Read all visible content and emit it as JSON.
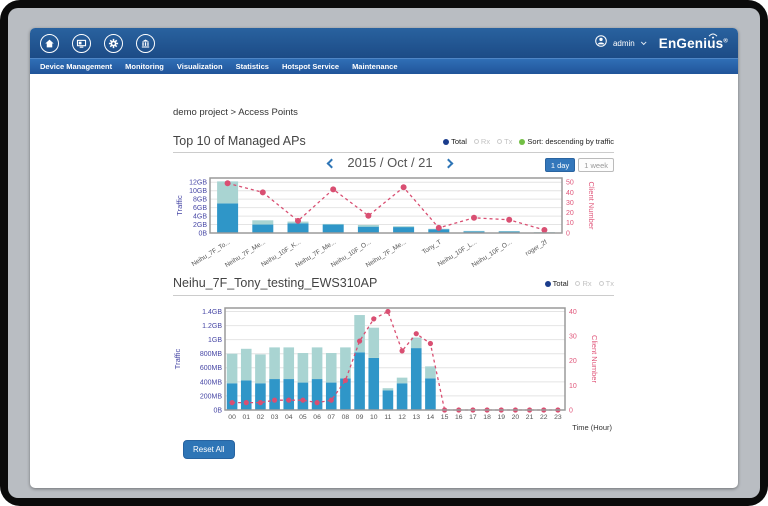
{
  "header": {
    "icons": [
      "home-icon",
      "screens-icon",
      "settings-icon",
      "organization-icon"
    ],
    "user": "admin",
    "brand": "EnGenius",
    "brand_reg": "®"
  },
  "nav": {
    "items": [
      "Device Management",
      "Monitoring",
      "Visualization",
      "Statistics",
      "Hotspot Service",
      "Maintenance"
    ]
  },
  "breadcrumb": "demo project > Access Points",
  "section1": {
    "title": "Top 10 of Managed APs",
    "legend": {
      "total": "Total",
      "rx": "Rx",
      "tx": "Tx",
      "sort": "Sort: descending by traffic"
    },
    "date": "2015 / Oct / 21",
    "range_buttons": [
      {
        "label": "1 day",
        "active": true
      },
      {
        "label": "1 week",
        "active": false
      }
    ]
  },
  "section2": {
    "title": "Neihu_7F_Tony_testing_EWS310AP",
    "legend": {
      "total": "Total",
      "rx": "Rx",
      "tx": "Tx"
    }
  },
  "reset_button": "Reset All",
  "colors": {
    "bar_dark": "#2f96c8",
    "bar_light": "#a9d4d2",
    "line": "#d94f72",
    "left_axis": "#4646a5",
    "right_axis": "#e0567a",
    "accent": "#2e75b6",
    "total_dot": "#1a3c8c",
    "sort_dot": "#72bf44"
  },
  "chart_data": [
    {
      "type": "bar",
      "title": "Top 10 of Managed APs",
      "categories": [
        "Neihu_7F_To...",
        "Neihu_7F_Me...",
        "Neihu_10F_K...",
        "Neihu_7F_Me...",
        "Neihu_10F_O...",
        "Neihu_7F_Me...",
        "Tony_T",
        "Neihu_10F_L...",
        "Neihu_10F_O...",
        "roger_2f"
      ],
      "series": [
        {
          "name": "traffic_lower_GB",
          "values": [
            7.0,
            2.0,
            2.3,
            2.0,
            1.5,
            1.4,
            0.9,
            0.4,
            0.35,
            0.15
          ]
        },
        {
          "name": "traffic_upper_GB",
          "values": [
            5.2,
            1.0,
            0.4,
            0.15,
            0.4,
            0.2,
            0.1,
            0.1,
            0.1,
            0.05
          ]
        },
        {
          "name": "client_number",
          "values": [
            49,
            40,
            12,
            43,
            17,
            45,
            5,
            15,
            13,
            3
          ]
        }
      ],
      "ylabel": "Traffic",
      "y2label": "Client Number",
      "yticks": [
        "0B",
        "2GB",
        "4GB",
        "6GB",
        "8GB",
        "10GB",
        "12GB"
      ],
      "ytick_vals": [
        0,
        2,
        4,
        6,
        8,
        10,
        12
      ],
      "ylim": [
        0,
        13
      ],
      "y2ticks": [
        0,
        10,
        20,
        30,
        40,
        50
      ],
      "y2lim": [
        0,
        50
      ],
      "y2_aligns_with_left": 12
    },
    {
      "type": "bar",
      "title": "Neihu_7F_Tony_testing_EWS310AP",
      "categories": [
        "00",
        "01",
        "02",
        "03",
        "04",
        "05",
        "06",
        "07",
        "08",
        "09",
        "10",
        "11",
        "12",
        "13",
        "14",
        "15",
        "16",
        "17",
        "18",
        "19",
        "20",
        "21",
        "22",
        "23"
      ],
      "series": [
        {
          "name": "traffic_lower_MB",
          "values": [
            380,
            420,
            380,
            440,
            440,
            390,
            440,
            390,
            450,
            820,
            740,
            280,
            380,
            880,
            450,
            0,
            0,
            0,
            0,
            0,
            0,
            0,
            0,
            0
          ]
        },
        {
          "name": "traffic_upper_MB",
          "values": [
            420,
            450,
            410,
            450,
            450,
            420,
            450,
            420,
            440,
            530,
            430,
            30,
            80,
            150,
            170,
            0,
            0,
            0,
            0,
            0,
            0,
            0,
            0,
            0
          ]
        },
        {
          "name": "client_number",
          "values": [
            3,
            3,
            3,
            4,
            4,
            4,
            3,
            4,
            12,
            28,
            37,
            40,
            24,
            31,
            27,
            0,
            0,
            0,
            0,
            0,
            0,
            0,
            0,
            0
          ]
        }
      ],
      "xlabel": "Time (Hour)",
      "ylabel": "Traffic",
      "y2label": "Client Number",
      "yticks": [
        "0B",
        "200MB",
        "400MB",
        "600MB",
        "800MB",
        "1GB",
        "1.2GB",
        "1.4GB"
      ],
      "ytick_vals": [
        0,
        200,
        400,
        600,
        800,
        1000,
        1200,
        1400
      ],
      "ylim": [
        0,
        1450
      ],
      "y2ticks": [
        0,
        10,
        20,
        30,
        40
      ],
      "y2lim": [
        0,
        40
      ],
      "y2_aligns_with_left": 1400
    }
  ]
}
